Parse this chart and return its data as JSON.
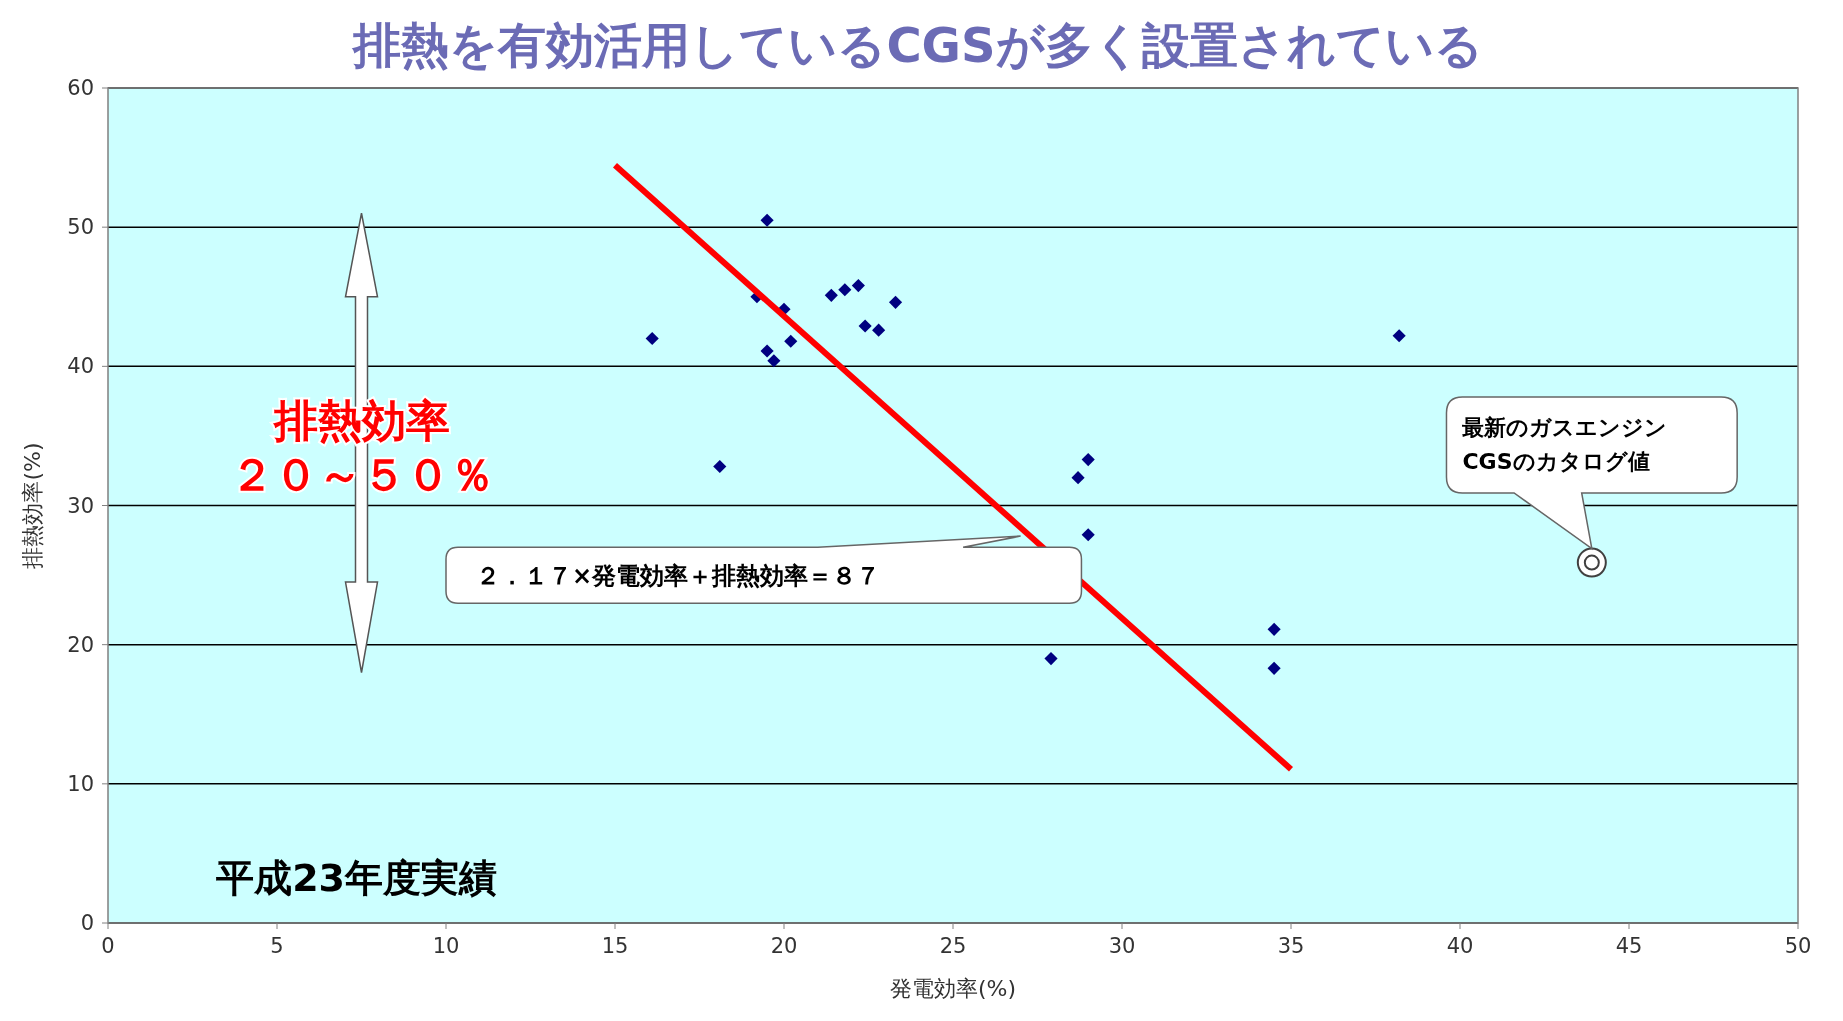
{
  "chart_data": {
    "type": "scatter",
    "title": "排熱を有効活用しているCGSが多く設置されている",
    "xlabel": "発電効率(%)",
    "ylabel": "排熱効率(%)",
    "xlim": [
      0,
      50
    ],
    "xticks": [
      0,
      5,
      10,
      15,
      20,
      25,
      30,
      35,
      40,
      45,
      50
    ],
    "ylim": [
      0,
      60
    ],
    "yticks": [
      0,
      10,
      20,
      30,
      40,
      50,
      60
    ],
    "grid": "y",
    "series": [
      {
        "color": "#000080",
        "marker": "diamond",
        "x": [
          16.1,
          18.1,
          19.5,
          19.2,
          20.0,
          19.5,
          19.7,
          20.2,
          21.4,
          21.8,
          22.2,
          22.4,
          22.8,
          23.3,
          28.7,
          29.0,
          29.0,
          27.9,
          34.5,
          34.5,
          38.2
        ],
        "values": [
          42.0,
          32.8,
          50.5,
          45.0,
          44.1,
          41.1,
          40.4,
          41.8,
          45.1,
          45.5,
          45.8,
          42.9,
          42.6,
          44.6,
          32.0,
          33.3,
          27.9,
          19.0,
          21.1,
          18.3,
          42.2
        ]
      },
      {
        "color": "#404040",
        "marker": "circle",
        "x": [
          43.9
        ],
        "values": [
          25.9
        ]
      },
      {
        "type": "line",
        "color": "#ff0000",
        "x": [
          15,
          35
        ],
        "values": [
          54.45,
          11.05
        ]
      }
    ],
    "annotations": [
      "排熱効率",
      "２０～５０％",
      "２．１７×発電効率＋排熱効率＝８７",
      "最新のガスエンジン\nCGSのカタログ値",
      "平成23年度実績"
    ]
  }
}
